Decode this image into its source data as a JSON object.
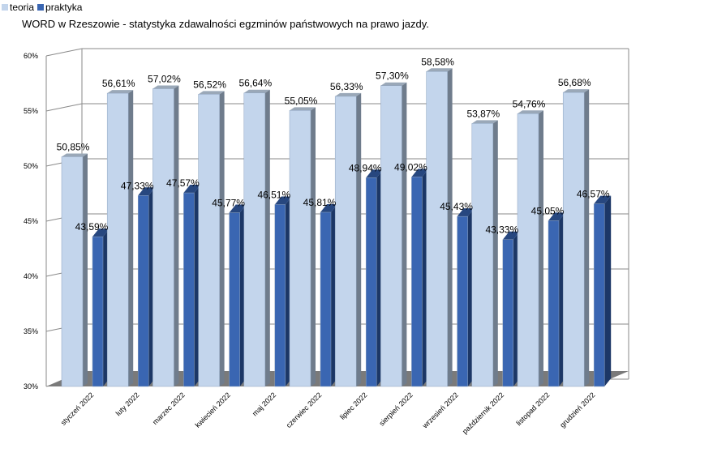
{
  "colors": {
    "teoria": "#c3d5ec",
    "teoria_side": "#6f7c8c",
    "teoria_top": "#9aa8b8",
    "praktyka": "#3a66b2",
    "praktyka_side": "#1c3766",
    "praktyka_top": "#27477f",
    "grid": "#8a8a8a",
    "floor": "#7a7a7a"
  },
  "chart_data": {
    "type": "bar",
    "title": "WORD w Rzeszowie - statystyka zdawalności egzminów państwowych na prawo jazdy.",
    "xlabel": "",
    "ylabel": "",
    "ylim": [
      30,
      60
    ],
    "yticks": [
      30,
      35,
      40,
      45,
      50,
      55,
      60
    ],
    "ytick_labels": [
      "30%",
      "35%",
      "40%",
      "45%",
      "50%",
      "55%",
      "60%"
    ],
    "grid": true,
    "legend": "top-left",
    "categories": [
      "styczeń 2022",
      "luty 2022",
      "marzec 2022",
      "kwiecień 2022",
      "maj 2022",
      "czerwiec 2022",
      "lipiec 2022",
      "sierpień 2022",
      "wrzesień 2022",
      "październik 2022",
      "listopad 2022",
      "grudzień 2022"
    ],
    "series": [
      {
        "name": "teoria",
        "values": [
          50.85,
          56.61,
          57.02,
          56.52,
          56.64,
          55.05,
          56.33,
          57.3,
          58.58,
          53.87,
          54.76,
          56.68
        ],
        "labels": [
          "50,85%",
          "56,61%",
          "57,02%",
          "56,52%",
          "56,64%",
          "55,05%",
          "56,33%",
          "57,30%",
          "58,58%",
          "53,87%",
          "54,76%",
          "56,68%"
        ]
      },
      {
        "name": "praktyka",
        "values": [
          43.59,
          47.33,
          47.57,
          45.77,
          46.51,
          45.81,
          48.94,
          49.02,
          45.43,
          43.33,
          45.05,
          46.57
        ],
        "labels": [
          "43,59%",
          "47,33%",
          "47,57%",
          "45,77%",
          "46,51%",
          "45,81%",
          "48,94%",
          "49,02%",
          "45,43%",
          "43,33%",
          "45,05%",
          "46,57%"
        ]
      }
    ]
  }
}
